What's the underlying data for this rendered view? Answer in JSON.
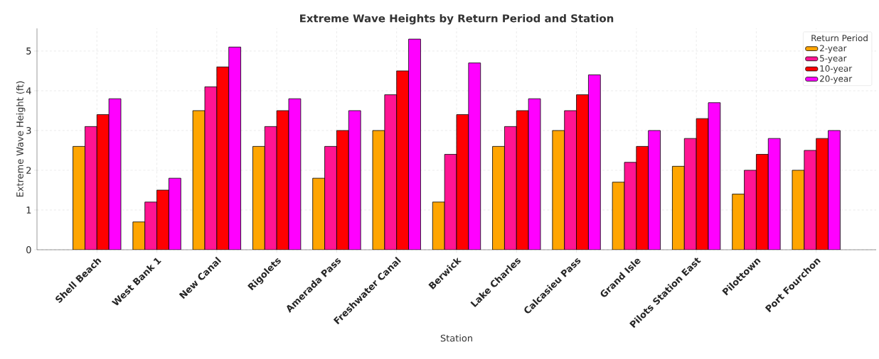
{
  "chart_data": {
    "type": "bar",
    "title": "Extreme Wave Heights by Return Period and Station",
    "xlabel": "Station",
    "ylabel": "Extreme Wave Height (ft)",
    "legend_title": "Return Period",
    "categories": [
      "Shell Beach",
      "West Bank 1",
      "New Canal",
      "Rigolets",
      "Amerada Pass",
      "Freshwater Canal",
      "Berwick",
      "Lake Charles",
      "Calcasieu Pass",
      "Grand Isle",
      "Pilots Station East",
      "Pilottown",
      "Port Fourchon"
    ],
    "series": [
      {
        "name": "2-year",
        "color": "#ffa500",
        "values": [
          2.6,
          0.7,
          3.5,
          2.6,
          1.8,
          3.0,
          1.2,
          2.6,
          3.0,
          1.7,
          2.1,
          1.4,
          2.0
        ]
      },
      {
        "name": "5-year",
        "color": "#ff1493",
        "values": [
          3.1,
          1.2,
          4.1,
          3.1,
          2.6,
          3.9,
          2.4,
          3.1,
          3.5,
          2.2,
          2.8,
          2.0,
          2.5
        ]
      },
      {
        "name": "10-year",
        "color": "#ff0000",
        "values": [
          3.4,
          1.5,
          4.6,
          3.5,
          3.0,
          4.5,
          3.4,
          3.5,
          3.9,
          2.6,
          3.3,
          2.4,
          2.8
        ]
      },
      {
        "name": "20-year",
        "color": "#ff00ff",
        "values": [
          3.8,
          1.8,
          5.1,
          3.8,
          3.5,
          5.3,
          4.7,
          3.8,
          4.4,
          3.0,
          3.7,
          2.8,
          3.0
        ]
      }
    ],
    "ylim": [
      0,
      5.57
    ],
    "yticks": [
      0,
      1,
      2,
      3,
      4,
      5
    ],
    "grid": true,
    "legend": "top right"
  }
}
